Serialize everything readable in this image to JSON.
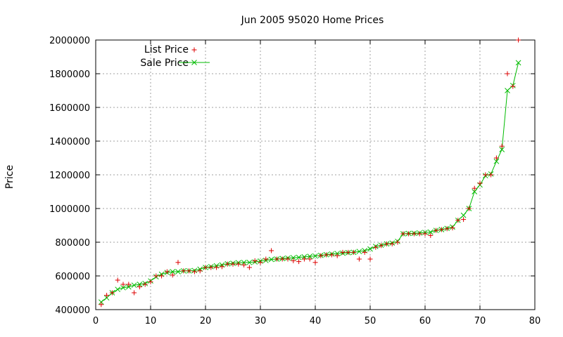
{
  "chart_data": {
    "type": "line",
    "title": "Jun 2005 95020 Home Prices",
    "xlabel": "",
    "ylabel": "Price",
    "xlim": [
      0,
      80
    ],
    "ylim": [
      400000,
      2000000
    ],
    "xticks": [
      0,
      10,
      20,
      30,
      40,
      50,
      60,
      70,
      80
    ],
    "yticks": [
      400000,
      600000,
      800000,
      1000000,
      1200000,
      1400000,
      1600000,
      1800000,
      2000000
    ],
    "grid": true,
    "legend_position": "top-left",
    "series": [
      {
        "name": "List Price",
        "style": "points",
        "marker": "plus",
        "color": "#dd0000",
        "x": [
          1,
          2,
          3,
          4,
          5,
          6,
          7,
          8,
          9,
          10,
          11,
          12,
          13,
          14,
          15,
          16,
          17,
          18,
          19,
          20,
          21,
          22,
          23,
          24,
          25,
          26,
          27,
          28,
          29,
          30,
          31,
          32,
          33,
          34,
          35,
          36,
          37,
          38,
          39,
          40,
          41,
          42,
          43,
          44,
          45,
          46,
          47,
          48,
          49,
          50,
          51,
          52,
          53,
          54,
          55,
          56,
          57,
          58,
          59,
          60,
          61,
          62,
          63,
          64,
          65,
          66,
          67,
          68,
          69,
          70,
          71,
          72,
          73,
          74,
          75,
          76,
          77
        ],
        "values": [
          430000,
          485000,
          500000,
          575000,
          550000,
          550000,
          500000,
          535000,
          550000,
          565000,
          600000,
          600000,
          625000,
          605000,
          680000,
          630000,
          630000,
          625000,
          630000,
          650000,
          650000,
          650000,
          655000,
          670000,
          670000,
          670000,
          665000,
          650000,
          690000,
          680000,
          700000,
          750000,
          700000,
          700000,
          700000,
          690000,
          685000,
          700000,
          700000,
          680000,
          720000,
          725000,
          725000,
          720000,
          740000,
          740000,
          740000,
          700000,
          740000,
          700000,
          770000,
          780000,
          790000,
          790000,
          800000,
          850000,
          850000,
          850000,
          850000,
          850000,
          840000,
          870000,
          875000,
          880000,
          885000,
          930000,
          935000,
          1000000,
          1120000,
          1150000,
          1200000,
          1200000,
          1300000,
          1370000,
          1800000,
          1725000,
          2000000
        ]
      },
      {
        "name": "Sale Price",
        "style": "linespoints",
        "marker": "x",
        "color": "#00bb00",
        "x": [
          1,
          2,
          3,
          4,
          5,
          6,
          7,
          8,
          9,
          10,
          11,
          12,
          13,
          14,
          15,
          16,
          17,
          18,
          19,
          20,
          21,
          22,
          23,
          24,
          25,
          26,
          27,
          28,
          29,
          30,
          31,
          32,
          33,
          34,
          35,
          36,
          37,
          38,
          39,
          40,
          41,
          42,
          43,
          44,
          45,
          46,
          47,
          48,
          49,
          50,
          51,
          52,
          53,
          54,
          55,
          56,
          57,
          58,
          59,
          60,
          61,
          62,
          63,
          64,
          65,
          66,
          67,
          68,
          69,
          70,
          71,
          72,
          73,
          74,
          75,
          76,
          77
        ],
        "values": [
          445000,
          470000,
          500000,
          520000,
          530000,
          535000,
          545000,
          550000,
          555000,
          570000,
          595000,
          610000,
          620000,
          625000,
          625000,
          630000,
          630000,
          632000,
          640000,
          650000,
          655000,
          660000,
          665000,
          672000,
          675000,
          678000,
          680000,
          680000,
          683000,
          688000,
          692000,
          698000,
          700000,
          703000,
          706000,
          708000,
          710000,
          713000,
          716000,
          718000,
          722000,
          726000,
          730000,
          733000,
          735000,
          738000,
          740000,
          745000,
          750000,
          760000,
          775000,
          782000,
          790000,
          795000,
          805000,
          850000,
          852000,
          853000,
          855000,
          858000,
          860000,
          870000,
          875000,
          882000,
          890000,
          930000,
          960000,
          1000000,
          1100000,
          1140000,
          1195000,
          1205000,
          1280000,
          1350000,
          1700000,
          1730000,
          1865000
        ]
      }
    ]
  }
}
